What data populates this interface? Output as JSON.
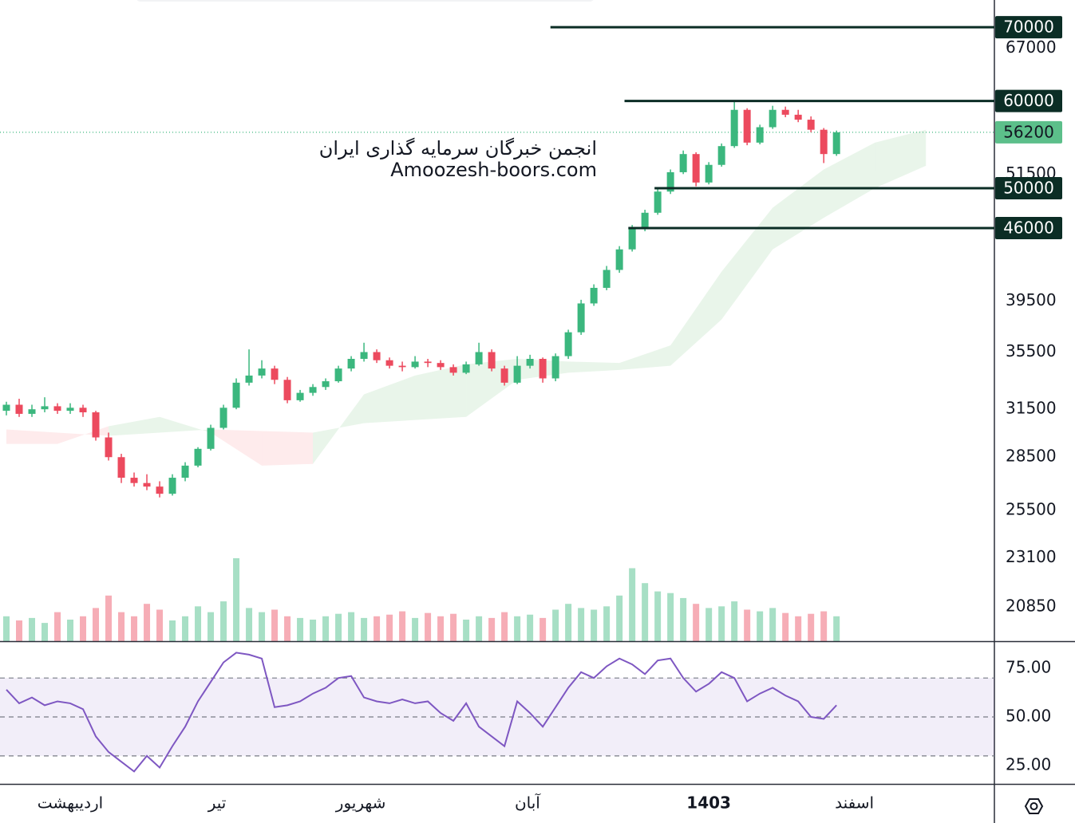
{
  "chart_data": {
    "type": "candlestick",
    "watermark": [
      "انجمن خبرگان سرمایه گذاری ایران",
      "Amoozesh-boors.com"
    ],
    "candles": [
      [
        31400,
        32000,
        31100,
        31800
      ],
      [
        31800,
        32200,
        31000,
        31200
      ],
      [
        31200,
        31800,
        31000,
        31500
      ],
      [
        31500,
        32300,
        31300,
        31700
      ],
      [
        31700,
        31900,
        31200,
        31400
      ],
      [
        31400,
        31900,
        31200,
        31600
      ],
      [
        31600,
        31800,
        31000,
        31300
      ],
      [
        31300,
        31400,
        29500,
        29700
      ],
      [
        29700,
        30000,
        28300,
        28500
      ],
      [
        28500,
        28700,
        27000,
        27300
      ],
      [
        27300,
        27600,
        26800,
        27000
      ],
      [
        27000,
        27500,
        26600,
        26800
      ],
      [
        26800,
        27100,
        26200,
        26400
      ],
      [
        26400,
        27500,
        26300,
        27300
      ],
      [
        27300,
        28200,
        27100,
        28000
      ],
      [
        28000,
        29100,
        27900,
        29000
      ],
      [
        29000,
        30500,
        28900,
        30300
      ],
      [
        30300,
        31800,
        30200,
        31600
      ],
      [
        31600,
        33600,
        31500,
        33300
      ],
      [
        33300,
        35700,
        33100,
        33800
      ],
      [
        33800,
        34900,
        33600,
        34300
      ],
      [
        34300,
        34500,
        33200,
        33500
      ],
      [
        33500,
        33700,
        31900,
        32100
      ],
      [
        32100,
        32800,
        32000,
        32600
      ],
      [
        32600,
        33200,
        32400,
        33000
      ],
      [
        33000,
        33600,
        32800,
        33400
      ],
      [
        33400,
        34500,
        33300,
        34300
      ],
      [
        34300,
        35200,
        34100,
        35000
      ],
      [
        35000,
        36200,
        34800,
        35500
      ],
      [
        35500,
        35700,
        34700,
        34900
      ],
      [
        34900,
        35100,
        34300,
        34500
      ],
      [
        34500,
        34800,
        34100,
        34400
      ],
      [
        34400,
        35200,
        34300,
        34800
      ],
      [
        34800,
        35000,
        34400,
        34700
      ],
      [
        34700,
        34900,
        34200,
        34400
      ],
      [
        34400,
        34600,
        33800,
        34000
      ],
      [
        34000,
        34800,
        33900,
        34600
      ],
      [
        34600,
        36200,
        34500,
        35500
      ],
      [
        35500,
        35700,
        34100,
        34300
      ],
      [
        34300,
        34500,
        33100,
        33300
      ],
      [
        33300,
        35200,
        33200,
        34500
      ],
      [
        34500,
        35300,
        34300,
        35000
      ],
      [
        35000,
        35100,
        33300,
        33600
      ],
      [
        33600,
        35400,
        33400,
        35200
      ],
      [
        35200,
        37200,
        35000,
        37000
      ],
      [
        37000,
        39600,
        36800,
        39300
      ],
      [
        39300,
        40900,
        39100,
        40600
      ],
      [
        40600,
        42500,
        40400,
        42150
      ],
      [
        42150,
        44300,
        41900,
        44000
      ],
      [
        44000,
        46300,
        43800,
        45950
      ],
      [
        45950,
        47800,
        45700,
        47500
      ],
      [
        47500,
        50000,
        47300,
        49650
      ],
      [
        49650,
        52000,
        49400,
        51700
      ],
      [
        51700,
        54100,
        51500,
        53700
      ],
      [
        53700,
        53900,
        50200,
        50600
      ],
      [
        50600,
        52800,
        50400,
        52500
      ],
      [
        52500,
        54900,
        52300,
        54600
      ],
      [
        54600,
        59900,
        54400,
        58900
      ],
      [
        58900,
        59100,
        54700,
        55000
      ],
      [
        55000,
        57100,
        54800,
        56800
      ],
      [
        56800,
        59400,
        56600,
        58900
      ],
      [
        58900,
        59300,
        58000,
        58300
      ],
      [
        58300,
        58900,
        57400,
        57700
      ],
      [
        57700,
        58100,
        56200,
        56500
      ],
      [
        56500,
        56700,
        52700,
        53700
      ],
      [
        53700,
        56400,
        53500,
        56200
      ]
    ],
    "volume": [
      30,
      25,
      28,
      22,
      35,
      26,
      30,
      40,
      55,
      35,
      30,
      45,
      38,
      25,
      30,
      42,
      35,
      48,
      100,
      40,
      35,
      38,
      30,
      28,
      26,
      30,
      33,
      35,
      28,
      30,
      32,
      36,
      28,
      34,
      30,
      33,
      26,
      30,
      28,
      35,
      30,
      32,
      28,
      38,
      45,
      40,
      38,
      42,
      55,
      88,
      70,
      60,
      58,
      52,
      45,
      40,
      42,
      48,
      38,
      36,
      40,
      34,
      30,
      33,
      36,
      30
    ],
    "up_color": "#3bb77e",
    "down_color": "#ec4a5e",
    "cloud": {
      "x": [
        0,
        4,
        8,
        12,
        16,
        20,
        24,
        28,
        32,
        36,
        40,
        44,
        48,
        52,
        56,
        60,
        64,
        68,
        72
      ],
      "span_a": [
        29300,
        29300,
        30400,
        31000,
        30000,
        28000,
        28100,
        32500,
        33800,
        34600,
        35000,
        34800,
        34700,
        36000,
        42000,
        48000,
        52000,
        55000,
        56500
      ],
      "span_b": [
        30200,
        30000,
        29800,
        30000,
        30200,
        30100,
        30000,
        30600,
        30800,
        31000,
        33500,
        34000,
        34200,
        34500,
        38000,
        44000,
        47000,
        50000,
        52400
      ]
    },
    "levels": [
      {
        "value": 70000,
        "start": 42.6
      },
      {
        "value": 60000,
        "start": 48.4
      },
      {
        "value": 50000,
        "start": 50.75
      },
      {
        "value": 46000,
        "start": 48.7
      }
    ],
    "last_price": 56200,
    "ylim": [
      19400,
      74100
    ],
    "log_scale": true,
    "xlim": [
      -0.5,
      77.3
    ],
    "yticks": [
      67000,
      51500,
      39500,
      35500,
      31500,
      28500,
      25500,
      23100,
      20850
    ],
    "x_labels": [
      {
        "index": 5,
        "label": "اردیبهشت"
      },
      {
        "index": 16.5,
        "label": "تیر"
      },
      {
        "index": 27.75,
        "label": "شهریور"
      },
      {
        "index": 40.8,
        "label": "آبان"
      },
      {
        "index": 55,
        "label": "1403"
      },
      {
        "index": 66.4,
        "label": "اسفند"
      }
    ],
    "rsi": {
      "values": [
        64,
        57,
        60,
        56,
        58,
        57,
        54,
        40,
        32,
        27,
        22,
        30,
        24,
        35,
        45,
        58,
        68,
        78,
        83,
        82,
        80,
        55,
        56,
        58,
        62,
        65,
        70,
        71,
        60,
        58,
        57,
        59,
        57,
        58,
        52,
        48,
        57,
        45,
        40,
        35,
        58,
        52,
        45,
        55,
        65,
        73,
        70,
        76,
        80,
        77,
        72,
        79,
        80,
        70,
        63,
        67,
        73,
        70,
        58,
        62,
        65,
        61,
        58,
        50,
        49,
        56
      ],
      "color": "#7e57c2",
      "ylim": [
        15.6,
        88.5
      ],
      "band": [
        30,
        70
      ],
      "midline": 50,
      "yticks": [
        {
          "value": 75,
          "label": "75.00"
        },
        {
          "value": 50,
          "label": "50.00"
        },
        {
          "value": 25,
          "label": "25.00"
        }
      ]
    }
  }
}
